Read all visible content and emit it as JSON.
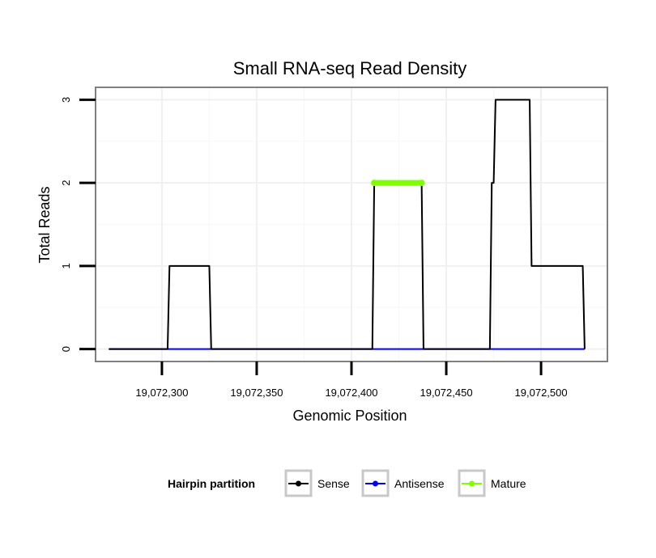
{
  "chart_data": {
    "type": "line",
    "title": "Small RNA-seq Read Density",
    "xlabel": "Genomic Position",
    "ylabel": "Total Reads",
    "xlim": [
      19072265,
      19072535
    ],
    "ylim": [
      -0.15,
      3.15
    ],
    "x_ticks": [
      19072300,
      19072350,
      19072400,
      19072450,
      19072500
    ],
    "x_tick_labels": [
      "19,072,300",
      "19,072,350",
      "19,072,400",
      "19,072,450",
      "19,072,500"
    ],
    "y_ticks": [
      0,
      1,
      2,
      3
    ],
    "y_tick_labels": [
      "0",
      "1",
      "2",
      "3"
    ],
    "grid": true,
    "legend": {
      "title": "Hairpin partition",
      "position": "bottom",
      "entries": [
        "Sense",
        "Antisense",
        "Mature"
      ]
    },
    "series": [
      {
        "name": "Sense",
        "color": "#000000",
        "points": [
          [
            19072272,
            0
          ],
          [
            19072303,
            0
          ],
          [
            19072304,
            1
          ],
          [
            19072325,
            1
          ],
          [
            19072326,
            0
          ],
          [
            19072411,
            0
          ],
          [
            19072412,
            2
          ],
          [
            19072437,
            2
          ],
          [
            19072438,
            0
          ],
          [
            19072473,
            0
          ],
          [
            19072474,
            2
          ],
          [
            19072475,
            2
          ],
          [
            19072476,
            3
          ],
          [
            19072494,
            3
          ],
          [
            19072495,
            1
          ],
          [
            19072522,
            1
          ],
          [
            19072523,
            0
          ]
        ]
      },
      {
        "name": "Antisense",
        "color": "#0000ff",
        "points": [
          [
            19072272,
            0
          ],
          [
            19072523,
            0
          ]
        ]
      },
      {
        "name": "Mature",
        "color": "#7fff00",
        "points": [
          [
            19072412,
            2
          ],
          [
            19072437,
            2
          ]
        ]
      }
    ]
  }
}
